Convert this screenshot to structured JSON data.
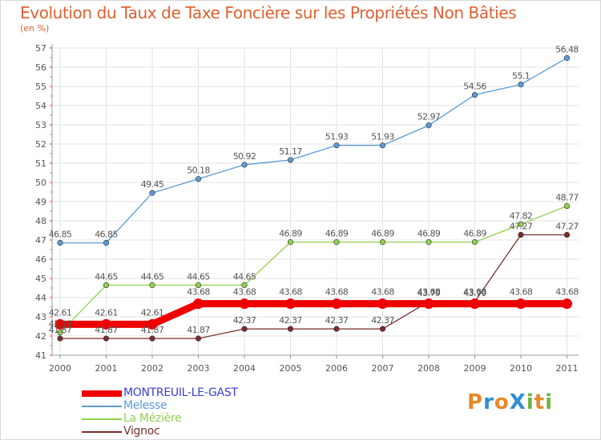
{
  "chart_data": {
    "type": "line",
    "title": "Evolution du Taux de Taxe Foncière sur les Propriétés Non Bâties",
    "ylabel": "(en %)",
    "xlabel": "",
    "categories": [
      "2000",
      "2001",
      "2002",
      "2003",
      "2004",
      "2005",
      "2006",
      "2007",
      "2008",
      "2009",
      "2010",
      "2011"
    ],
    "ylim": [
      41,
      57
    ],
    "yticks": [
      "41",
      "42",
      "43",
      "44",
      "45",
      "46",
      "47",
      "48",
      "49",
      "50",
      "51",
      "52",
      "53",
      "54",
      "55",
      "56",
      "57"
    ],
    "series": [
      {
        "name": "MONTREUIL-LE-GAST",
        "color": "#ee0000",
        "values": [
          42.61,
          42.61,
          42.61,
          43.68,
          43.68,
          43.68,
          43.68,
          43.68,
          43.68,
          43.68,
          43.68,
          43.68
        ],
        "labels": [
          "42.61",
          "42.61",
          "42.61",
          "43.68",
          "43.68",
          "43.68",
          "43.68",
          "43.68",
          "43.68",
          "43.68",
          "43.68",
          "43.68"
        ]
      },
      {
        "name": "Melesse",
        "color": "#5b9bd5",
        "values": [
          46.85,
          46.85,
          49.45,
          50.18,
          50.92,
          51.17,
          51.93,
          51.93,
          52.97,
          54.56,
          55.1,
          56.48
        ],
        "labels": [
          "46.85",
          "46.85",
          "49.45",
          "50.18",
          "50.92",
          "51.17",
          "51.93",
          "51.93",
          "52.97",
          "54.56",
          "55.1",
          "56.48"
        ]
      },
      {
        "name": "La Mézière",
        "color": "#92d050",
        "values": [
          42.18,
          44.65,
          44.65,
          44.65,
          44.65,
          46.89,
          46.89,
          46.89,
          46.89,
          46.89,
          47.82,
          48.77
        ],
        "labels": [
          "42.18",
          "44.65",
          "44.65",
          "44.65",
          "44.65",
          "46.89",
          "46.89",
          "46.89",
          "46.89",
          "46.89",
          "47.82",
          "48.77"
        ]
      },
      {
        "name": "Vignoc",
        "color": "#7b2c2c",
        "values": [
          41.87,
          41.87,
          41.87,
          41.87,
          42.37,
          42.37,
          42.37,
          42.37,
          43.79,
          43.79,
          47.27,
          47.27
        ],
        "labels": [
          "41.87",
          "41.87",
          "41.87",
          "41.87",
          "42.37",
          "42.37",
          "42.37",
          "42.37",
          "43.79",
          "43.79",
          "47.27",
          "47.27"
        ]
      }
    ]
  },
  "logo": {
    "text": "ProXiti",
    "letters": [
      "P",
      "r",
      "o",
      "X",
      "i",
      "t",
      "i"
    ],
    "colors": [
      "#e8892a",
      "#2f8fd0",
      "#e8892a",
      "#2f8fd0",
      "#6cb33f",
      "#e8892a",
      "#6cb33f"
    ]
  }
}
